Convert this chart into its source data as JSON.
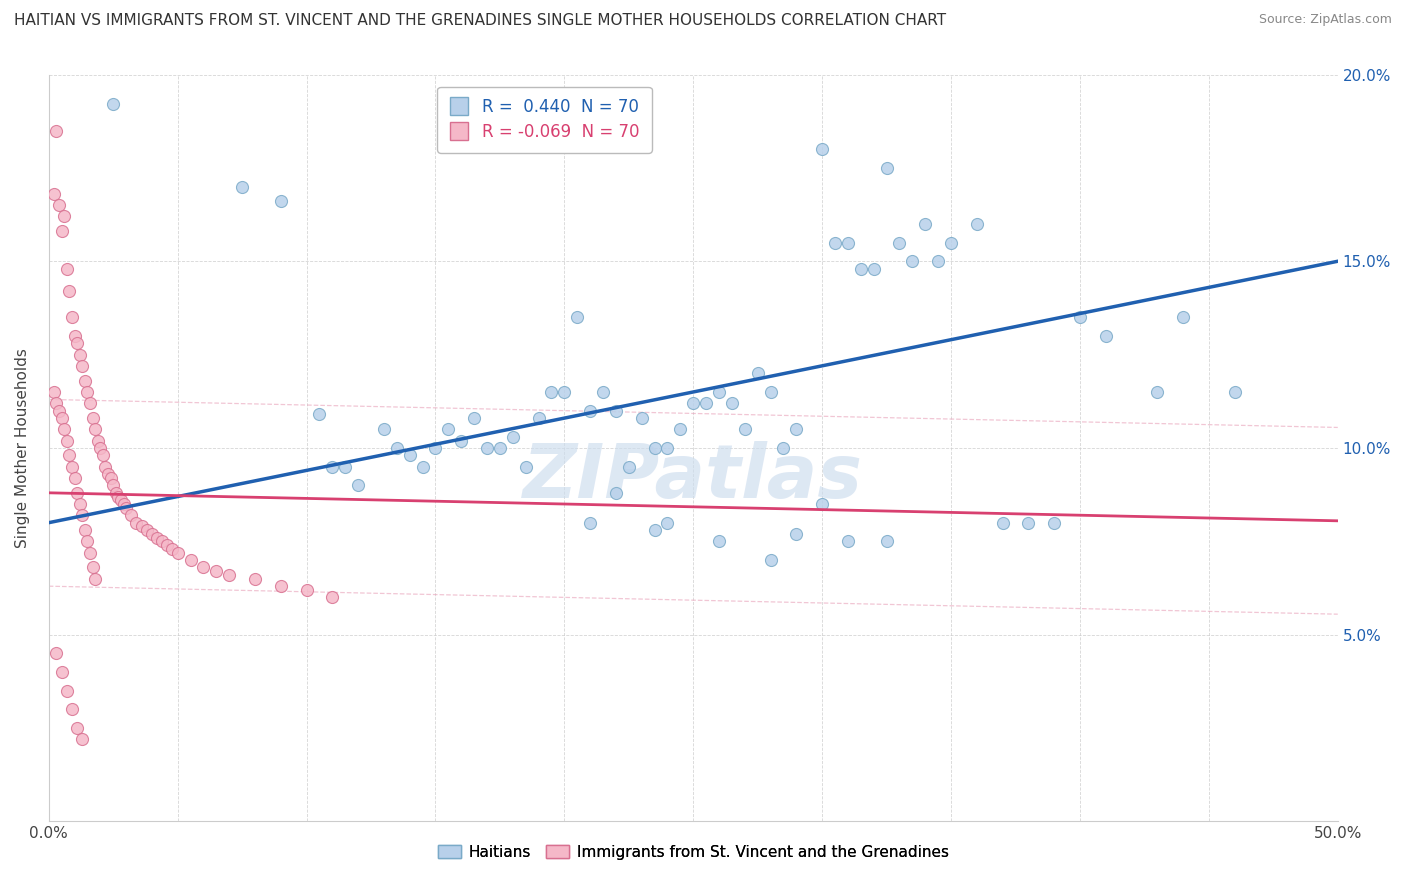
{
  "title": "HAITIAN VS IMMIGRANTS FROM ST. VINCENT AND THE GRENADINES SINGLE MOTHER HOUSEHOLDS CORRELATION CHART",
  "source": "Source: ZipAtlas.com",
  "ylabel_label": "Single Mother Households",
  "x_min": 0.0,
  "x_max": 0.5,
  "y_min": 0.0,
  "y_max": 0.2,
  "R_blue": 0.44,
  "N_blue": 70,
  "R_pink": -0.069,
  "N_pink": 70,
  "blue_color": "#b8d0ea",
  "blue_edge": "#7aaac8",
  "blue_line": "#2060b0",
  "pink_color": "#f5b8c8",
  "pink_edge": "#d87090",
  "pink_line": "#d84070",
  "pink_line_dash": "#e8a0b8",
  "watermark": "ZIPatlas",
  "watermark_color": "#ccdcee",
  "title_fontsize": 11,
  "source_fontsize": 9,
  "scatter_size": 75,
  "blue_scatter_x": [
    0.025,
    0.075,
    0.09,
    0.105,
    0.11,
    0.115,
    0.12,
    0.13,
    0.135,
    0.14,
    0.145,
    0.15,
    0.155,
    0.16,
    0.165,
    0.17,
    0.175,
    0.18,
    0.185,
    0.19,
    0.195,
    0.2,
    0.205,
    0.21,
    0.215,
    0.22,
    0.225,
    0.23,
    0.235,
    0.24,
    0.245,
    0.25,
    0.255,
    0.26,
    0.265,
    0.27,
    0.275,
    0.28,
    0.285,
    0.29,
    0.3,
    0.305,
    0.31,
    0.315,
    0.32,
    0.325,
    0.33,
    0.335,
    0.34,
    0.345,
    0.35,
    0.36,
    0.37,
    0.38,
    0.39,
    0.4,
    0.41,
    0.43,
    0.44,
    0.46,
    0.21,
    0.235,
    0.29,
    0.3,
    0.31,
    0.325,
    0.28,
    0.26,
    0.24,
    0.22
  ],
  "blue_scatter_y": [
    0.192,
    0.17,
    0.166,
    0.109,
    0.095,
    0.095,
    0.09,
    0.105,
    0.1,
    0.098,
    0.095,
    0.1,
    0.105,
    0.102,
    0.108,
    0.1,
    0.1,
    0.103,
    0.095,
    0.108,
    0.115,
    0.115,
    0.135,
    0.11,
    0.115,
    0.11,
    0.095,
    0.108,
    0.1,
    0.1,
    0.105,
    0.112,
    0.112,
    0.115,
    0.112,
    0.105,
    0.12,
    0.115,
    0.1,
    0.105,
    0.18,
    0.155,
    0.155,
    0.148,
    0.148,
    0.175,
    0.155,
    0.15,
    0.16,
    0.15,
    0.155,
    0.16,
    0.08,
    0.08,
    0.08,
    0.135,
    0.13,
    0.115,
    0.135,
    0.115,
    0.08,
    0.078,
    0.077,
    0.085,
    0.075,
    0.075,
    0.07,
    0.075,
    0.08,
    0.088
  ],
  "pink_scatter_x": [
    0.002,
    0.003,
    0.004,
    0.005,
    0.006,
    0.007,
    0.008,
    0.009,
    0.01,
    0.011,
    0.012,
    0.013,
    0.014,
    0.015,
    0.016,
    0.017,
    0.018,
    0.019,
    0.02,
    0.021,
    0.022,
    0.023,
    0.024,
    0.025,
    0.026,
    0.027,
    0.028,
    0.029,
    0.03,
    0.032,
    0.034,
    0.036,
    0.038,
    0.04,
    0.042,
    0.044,
    0.046,
    0.048,
    0.05,
    0.055,
    0.06,
    0.065,
    0.07,
    0.08,
    0.09,
    0.1,
    0.11,
    0.002,
    0.003,
    0.004,
    0.005,
    0.006,
    0.007,
    0.008,
    0.009,
    0.01,
    0.011,
    0.012,
    0.013,
    0.014,
    0.015,
    0.016,
    0.017,
    0.018,
    0.003,
    0.005,
    0.007,
    0.009,
    0.011,
    0.013
  ],
  "pink_scatter_y": [
    0.168,
    0.185,
    0.165,
    0.158,
    0.162,
    0.148,
    0.142,
    0.135,
    0.13,
    0.128,
    0.125,
    0.122,
    0.118,
    0.115,
    0.112,
    0.108,
    0.105,
    0.102,
    0.1,
    0.098,
    0.095,
    0.093,
    0.092,
    0.09,
    0.088,
    0.087,
    0.086,
    0.085,
    0.084,
    0.082,
    0.08,
    0.079,
    0.078,
    0.077,
    0.076,
    0.075,
    0.074,
    0.073,
    0.072,
    0.07,
    0.068,
    0.067,
    0.066,
    0.065,
    0.063,
    0.062,
    0.06,
    0.115,
    0.112,
    0.11,
    0.108,
    0.105,
    0.102,
    0.098,
    0.095,
    0.092,
    0.088,
    0.085,
    0.082,
    0.078,
    0.075,
    0.072,
    0.068,
    0.065,
    0.045,
    0.04,
    0.035,
    0.03,
    0.025,
    0.022
  ]
}
